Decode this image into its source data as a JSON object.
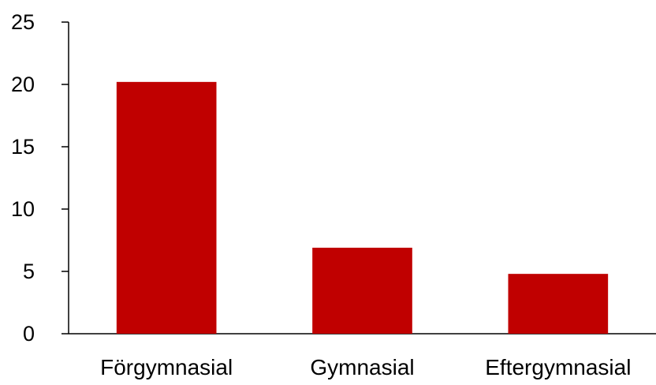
{
  "chart_data": {
    "type": "bar",
    "categories": [
      "Förgymnasial",
      "Gymnasial",
      "Eftergymnasial"
    ],
    "values": [
      20.2,
      6.9,
      4.8
    ],
    "title": "",
    "xlabel": "",
    "ylabel": "",
    "ylim": [
      0,
      25
    ],
    "yticks": [
      "0",
      "5",
      "10",
      "15",
      "20",
      "25"
    ],
    "bar_color": "#C00000",
    "grid": false,
    "legend": "none"
  }
}
